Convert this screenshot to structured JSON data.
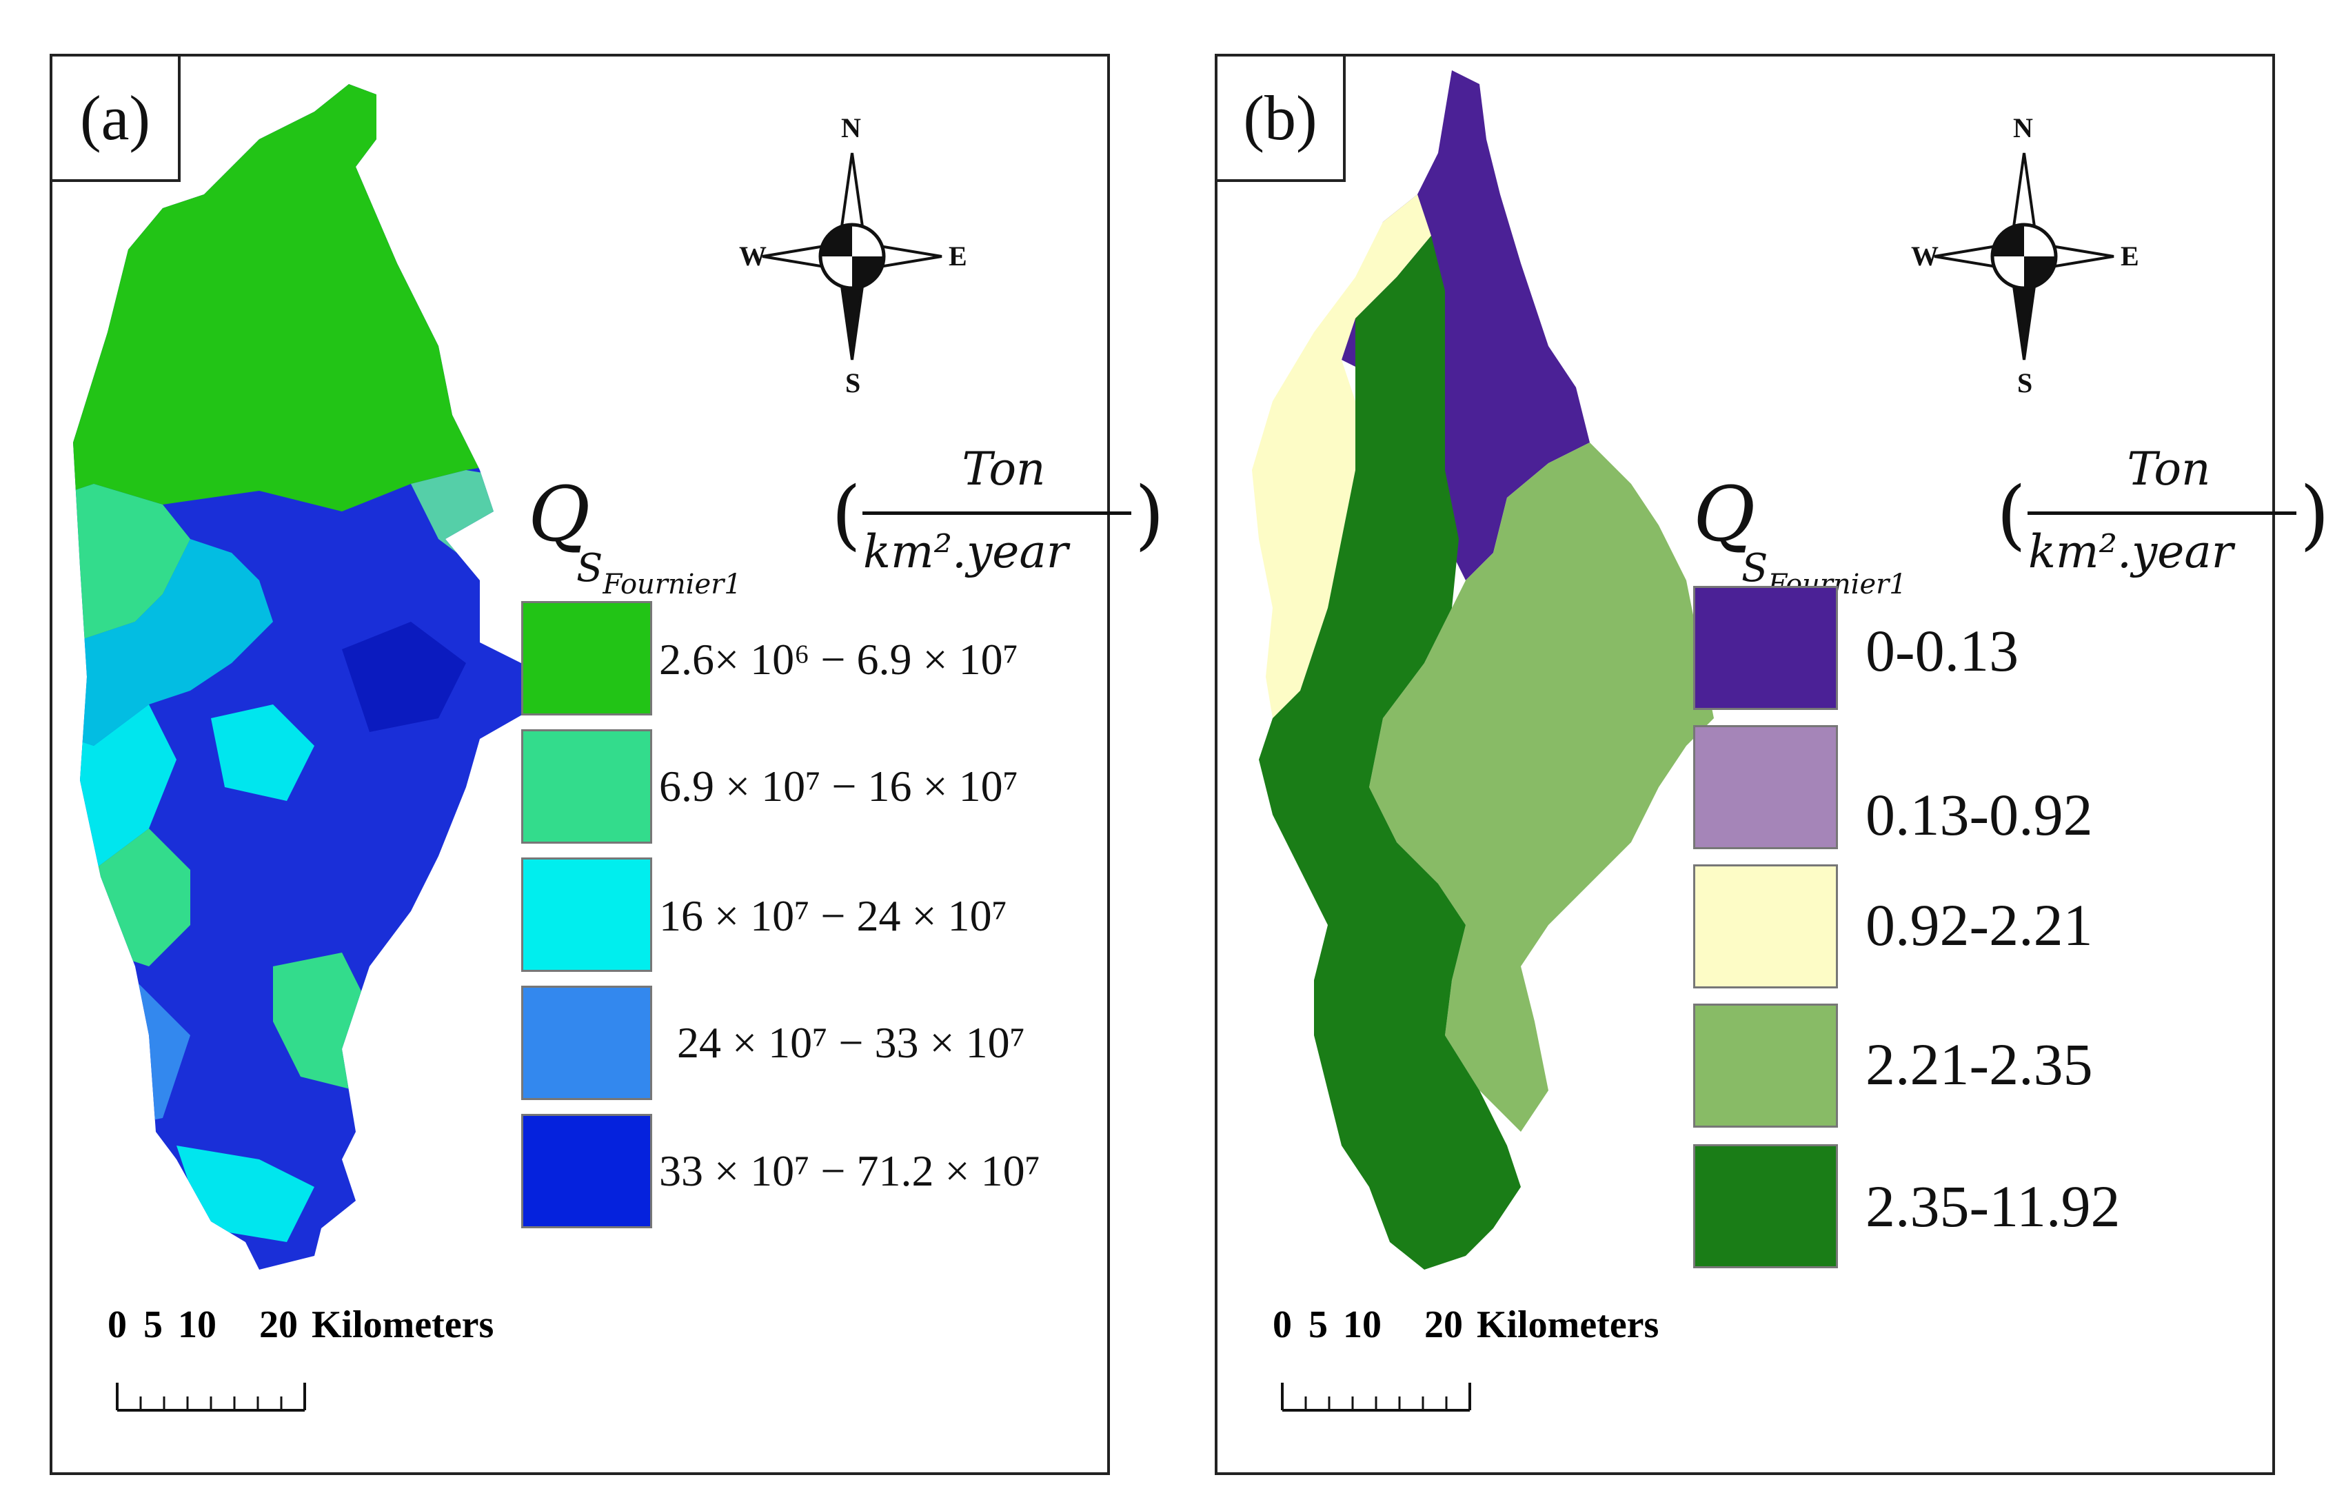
{
  "panels": [
    {
      "label": "(a)",
      "compass": {
        "n": "N",
        "s": "S",
        "e": "E",
        "w": "W"
      },
      "legend_title": {
        "symbol": "Q",
        "subscript_main": "S",
        "subscript_rest": "Fournier",
        "subscript_index": "1",
        "numerator": "Ton",
        "denominator": "km².year"
      },
      "legend": [
        {
          "label": "2.6× 10⁶ − 6.9 × 10⁷",
          "color": "#22c416"
        },
        {
          "label": "6.9 × 10⁷ − 16 × 10⁷",
          "color": "#33dc8c"
        },
        {
          "label": "16 × 10⁷ − 24 × 10⁷",
          "color": "#00eeee"
        },
        {
          "label": "24 × 10⁷ − 33 × 10⁷",
          "color": "#3388ee"
        },
        {
          "label": "33 × 10⁷ − 71.2 × 10⁷",
          "color": "#0522dd"
        }
      ],
      "scale": {
        "ticks": [
          "0",
          "5",
          "10",
          "20"
        ],
        "units": "Kilometers"
      }
    },
    {
      "label": "(b)",
      "compass": {
        "n": "N",
        "s": "S",
        "e": "E",
        "w": "W"
      },
      "legend_title": {
        "symbol": "Q",
        "subscript_main": "S",
        "subscript_rest": "Fournier",
        "subscript_index": "1",
        "numerator": "Ton",
        "denominator": "km².year"
      },
      "legend": [
        {
          "label": "0-0.13",
          "color": "#4b2196"
        },
        {
          "label": "0.13-0.92",
          "color": "#a585b8"
        },
        {
          "label": "0.92-2.21",
          "color": "#fdfcc6"
        },
        {
          "label": "2.21-2.35",
          "color": "#88bb66"
        },
        {
          "label": "2.35-11.92",
          "color": "#1a7d17"
        }
      ],
      "scale": {
        "ticks": [
          "0",
          "5",
          "10",
          "20"
        ],
        "units": "Kilometers"
      }
    }
  ]
}
